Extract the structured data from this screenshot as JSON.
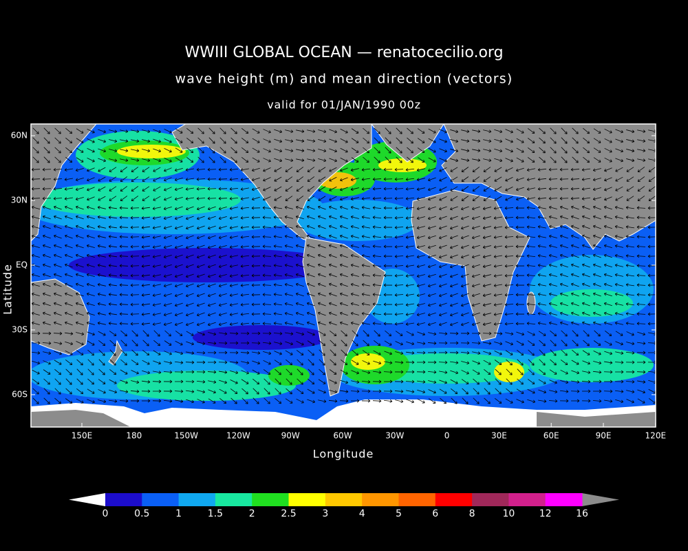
{
  "header": {
    "title": "WWIII GLOBAL OCEAN — renatocecilio.org",
    "subtitle": "wave height (m) and mean direction (vectors)",
    "valid": "valid for 01/JAN/1990 00z"
  },
  "map": {
    "y_label": "Latitude",
    "x_label": "Longitude",
    "lat_labels": [
      "60N",
      "30N",
      "EQ",
      "30S",
      "60S"
    ],
    "lon_labels": [
      "150E",
      "180",
      "150W",
      "120W",
      "90W",
      "60W",
      "30W",
      "0",
      "30E",
      "60E",
      "90E",
      "120E"
    ]
  },
  "colorbar": {
    "labels": [
      "0",
      "0.5",
      "1",
      "1.5",
      "2",
      "2.5",
      "3",
      "4",
      "5",
      "6",
      "8",
      "10",
      "12",
      "16"
    ],
    "colors": [
      "#1c0dcc",
      "#0a5ff5",
      "#10a8f0",
      "#18e8a0",
      "#20e020",
      "#ffff00",
      "#ffc800",
      "#ff9600",
      "#ff6400",
      "#ff0000",
      "#a0285a",
      "#d2208c",
      "#ff00ff"
    ],
    "under_color": "#ffffff",
    "over_color": "#8c8c8c"
  }
}
